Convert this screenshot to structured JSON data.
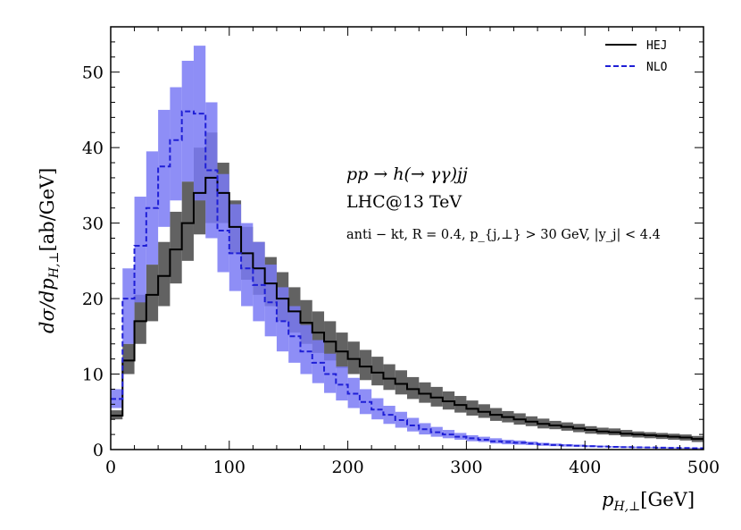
{
  "chart_data": {
    "type": "step-histogram",
    "xlabel_main": "p",
    "xlabel_sub": "H,⊥",
    "xlabel_unit": "[GeV]",
    "ylabel_main": "dσ/dp",
    "ylabel_sub": "H,⊥",
    "ylabel_unit": "[ab/GeV]",
    "xlim": [
      0,
      500
    ],
    "ylim": [
      0,
      56
    ],
    "xticks": [
      0,
      100,
      200,
      300,
      400,
      500
    ],
    "yticks": [
      0,
      10,
      20,
      30,
      40,
      50
    ],
    "bin_width": 10,
    "bins_lo": [
      0,
      10,
      20,
      30,
      40,
      50,
      60,
      70,
      80,
      90,
      100,
      110,
      120,
      130,
      140,
      150,
      160,
      170,
      180,
      190,
      200,
      210,
      220,
      230,
      240,
      250,
      260,
      270,
      280,
      290,
      300,
      310,
      320,
      330,
      340,
      350,
      360,
      370,
      380,
      390,
      400,
      410,
      420,
      430,
      440,
      450,
      460,
      470,
      480,
      490
    ],
    "series": [
      {
        "name": "HEJ",
        "color": "#000000",
        "band_color": "#5a5a5a",
        "dash": "solid",
        "values": [
          4.5,
          11.8,
          17.0,
          20.5,
          23.0,
          26.5,
          30.0,
          34.0,
          36.0,
          34.0,
          29.5,
          26.0,
          24.0,
          22.0,
          20.0,
          18.3,
          16.8,
          15.5,
          14.3,
          13.0,
          12.0,
          11.0,
          10.2,
          9.4,
          8.7,
          8.0,
          7.4,
          6.9,
          6.4,
          5.9,
          5.4,
          5.0,
          4.6,
          4.3,
          4.0,
          3.7,
          3.4,
          3.2,
          3.0,
          2.8,
          2.6,
          2.4,
          2.3,
          2.1,
          2.0,
          1.9,
          1.8,
          1.7,
          1.6,
          1.4
        ],
        "band_lo": [
          4.0,
          10.0,
          14.0,
          17.0,
          19.0,
          22.0,
          25.0,
          28.5,
          30.0,
          30.0,
          26.0,
          22.5,
          20.5,
          19.0,
          17.0,
          15.5,
          14.0,
          12.8,
          11.8,
          10.8,
          10.0,
          9.2,
          8.5,
          7.9,
          7.3,
          6.7,
          6.2,
          5.7,
          5.3,
          4.9,
          4.5,
          4.2,
          3.8,
          3.6,
          3.3,
          3.1,
          2.8,
          2.7,
          2.5,
          2.3,
          2.1,
          2.0,
          1.9,
          1.7,
          1.6,
          1.5,
          1.4,
          1.3,
          1.2,
          1.0
        ],
        "band_hi": [
          5.2,
          14.0,
          20.5,
          24.5,
          27.5,
          31.5,
          35.5,
          40.0,
          42.0,
          38.0,
          33.0,
          29.5,
          27.5,
          25.5,
          23.5,
          21.5,
          19.8,
          18.3,
          17.0,
          15.5,
          14.3,
          13.2,
          12.3,
          11.3,
          10.5,
          9.6,
          8.9,
          8.3,
          7.7,
          7.1,
          6.5,
          6.0,
          5.5,
          5.1,
          4.8,
          4.4,
          4.1,
          3.8,
          3.6,
          3.4,
          3.1,
          2.9,
          2.8,
          2.6,
          2.4,
          2.3,
          2.2,
          2.1,
          2.0,
          1.8
        ]
      },
      {
        "name": "NLO",
        "color": "#1f1fd6",
        "band_color": "#7a7af5",
        "dash": "dashed",
        "values": [
          6.7,
          20.0,
          27.0,
          32.0,
          37.5,
          41.0,
          44.8,
          44.5,
          37.0,
          29.0,
          26.0,
          24.0,
          21.8,
          19.5,
          17.0,
          15.0,
          13.0,
          11.5,
          10.0,
          8.6,
          7.4,
          6.3,
          5.3,
          4.6,
          3.9,
          3.2,
          2.7,
          2.3,
          2.0,
          1.7,
          1.5,
          1.3,
          1.1,
          1.0,
          0.9,
          0.8,
          0.7,
          0.6,
          0.55,
          0.5,
          0.45,
          0.4,
          0.35,
          0.32,
          0.3,
          0.28,
          0.25,
          0.22,
          0.2,
          0.18
        ],
        "band_lo": [
          5.5,
          14.0,
          19.5,
          24.5,
          29.5,
          33.0,
          35.5,
          33.0,
          28.0,
          23.5,
          21.0,
          19.0,
          17.0,
          15.0,
          13.0,
          11.5,
          10.0,
          8.8,
          7.5,
          6.5,
          5.5,
          4.7,
          4.0,
          3.4,
          2.9,
          2.4,
          2.0,
          1.7,
          1.5,
          1.3,
          1.1,
          1.0,
          0.8,
          0.7,
          0.65,
          0.6,
          0.5,
          0.45,
          0.4,
          0.38,
          0.33,
          0.3,
          0.27,
          0.24,
          0.22,
          0.2,
          0.18,
          0.16,
          0.15,
          0.13
        ],
        "band_hi": [
          8.0,
          24.0,
          33.5,
          39.5,
          45.0,
          48.0,
          51.5,
          53.5,
          46.0,
          36.5,
          32.5,
          30.0,
          27.5,
          24.5,
          21.5,
          19.0,
          16.5,
          14.5,
          12.7,
          11.0,
          9.5,
          8.0,
          6.8,
          5.8,
          5.0,
          4.2,
          3.5,
          3.0,
          2.6,
          2.2,
          1.9,
          1.7,
          1.5,
          1.3,
          1.2,
          1.05,
          0.9,
          0.8,
          0.72,
          0.65,
          0.58,
          0.52,
          0.46,
          0.42,
          0.38,
          0.35,
          0.32,
          0.29,
          0.26,
          0.24
        ]
      }
    ],
    "legend": [
      "HEJ",
      "NLO"
    ],
    "legend_position": "top-right",
    "annotations": {
      "process": "pp → h(→ γγ)jj",
      "collider": "LHC@13 TeV",
      "cuts": "anti − kt, R = 0.4, p_{j,⊥} > 30 GeV, |y_j| < 4.4"
    }
  }
}
